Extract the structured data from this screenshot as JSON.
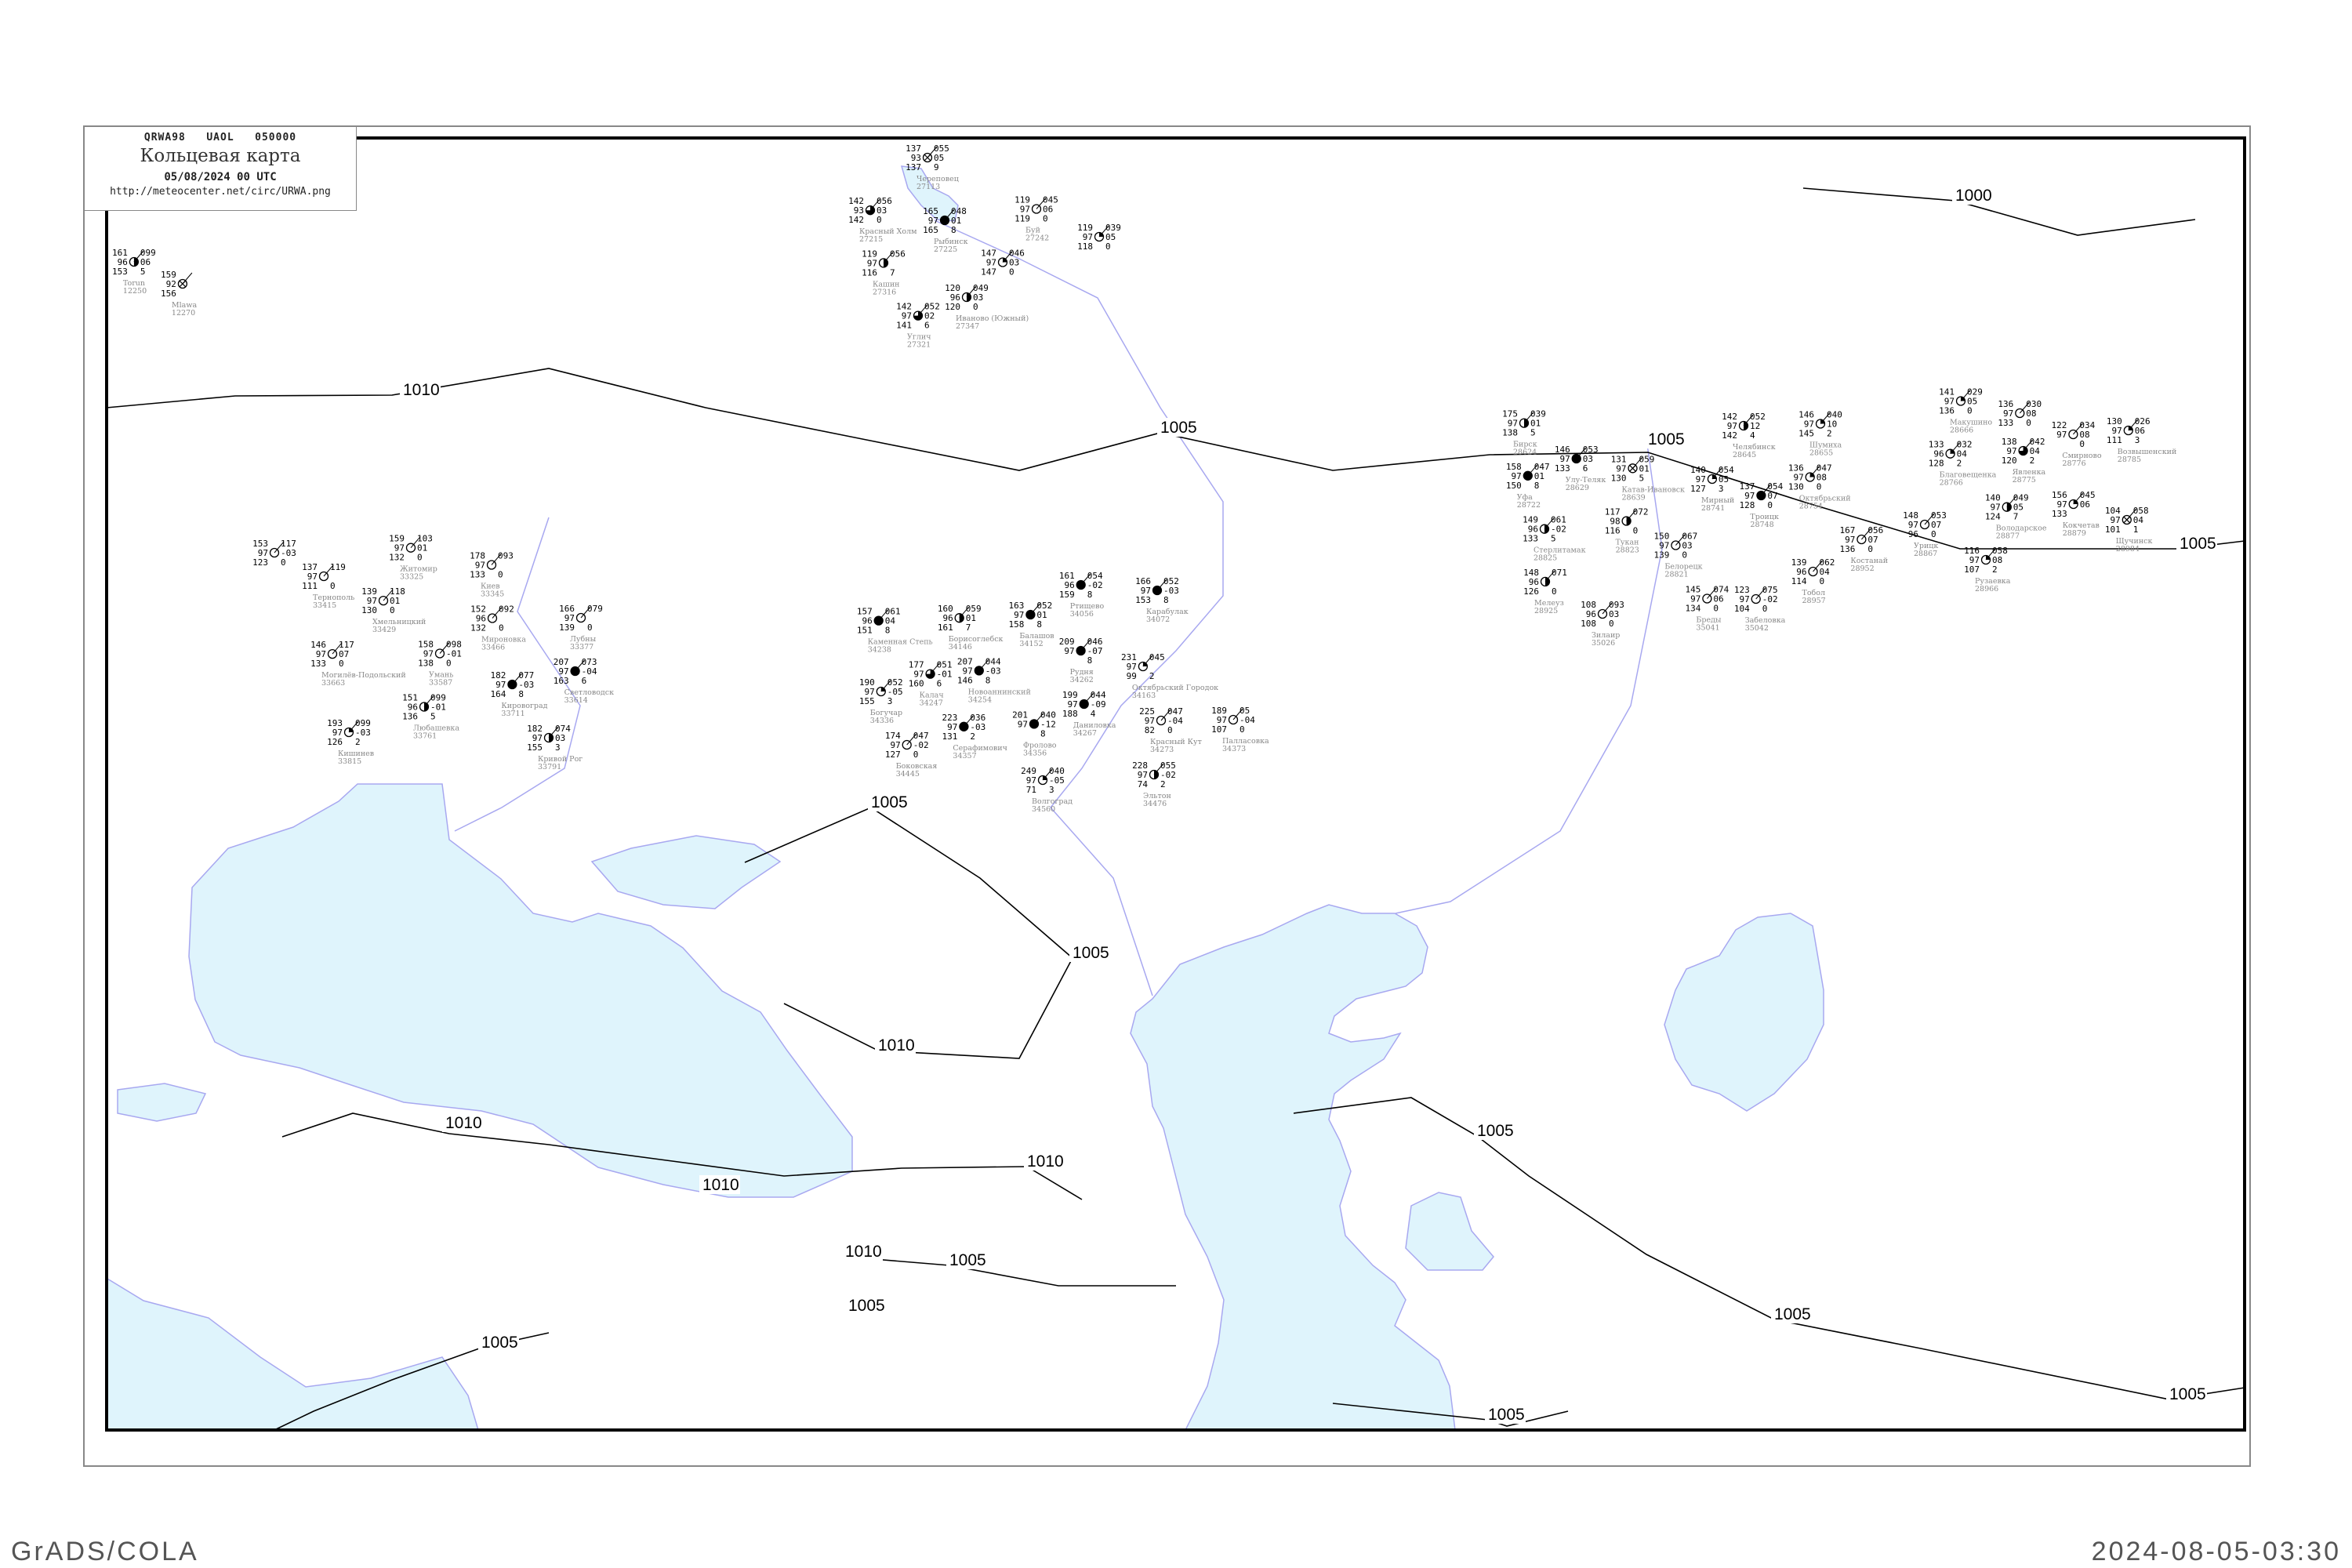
{
  "header": {
    "code_line": "QRWA98   UAOL   050000",
    "title": "Кольцевая карта",
    "date": "05/08/2024 00 UTC",
    "url": "http://meteocenter.net/circ/URWA.png"
  },
  "footer": {
    "left": "GrADS/COLA",
    "right": "2024-08-05-03:30"
  },
  "colors": {
    "water": "#dff4fc",
    "coast": "#a8a8f0",
    "river": "#1aa0f0",
    "isobar": "#000000",
    "station_name": "#888888"
  },
  "isobar_labels": [
    "1000",
    "1005",
    "1005",
    "1005",
    "1005",
    "1005",
    "1005",
    "1005",
    "1005",
    "1010",
    "1010",
    "1010",
    "1010",
    "1010",
    "1005",
    "1005",
    "1005",
    "1005",
    "1010"
  ],
  "stations": [
    {
      "name": "Torun",
      "id": "12250",
      "t": "161",
      "p": "099",
      "vis": "96",
      "tend": "06",
      "td": "153",
      "ww": "5",
      "cover": "half"
    },
    {
      "name": "Mlawa",
      "id": "12270",
      "t": "159",
      "p": "",
      "vis": "92",
      "tend": "",
      "td": "156",
      "ww": "",
      "cover": "cross"
    },
    {
      "name": "Череповец",
      "id": "27113",
      "t": "137",
      "p": "055",
      "vis": "93",
      "tend": "05",
      "td": "137",
      "ww": "9",
      "cover": "cross"
    },
    {
      "name": "Красный Холм",
      "id": "27215",
      "t": "142",
      "p": "056",
      "vis": "93",
      "tend": "03",
      "td": "142",
      "ww": "0",
      "cover": "three-quarter"
    },
    {
      "name": "Рыбинск",
      "id": "27225",
      "t": "165",
      "p": "048",
      "vis": "97",
      "tend": "01",
      "td": "165",
      "ww": "8",
      "cover": "full"
    },
    {
      "name": "Кашин",
      "id": "27316",
      "t": "119",
      "p": "056",
      "vis": "97",
      "tend": "",
      "td": "116",
      "ww": "7",
      "cover": "half"
    },
    {
      "name": "Углич",
      "id": "27321",
      "t": "142",
      "p": "052",
      "vis": "97",
      "tend": "02",
      "td": "141",
      "ww": "6",
      "cover": "three-quarter"
    },
    {
      "name": "",
      "id": "",
      "t": "147",
      "p": "046",
      "vis": "97",
      "tend": "03",
      "td": "147",
      "ww": "0",
      "cover": "quarter"
    },
    {
      "name": "Иваново (Южный)",
      "id": "27347",
      "t": "120",
      "p": "049",
      "vis": "96",
      "tend": "03",
      "td": "120",
      "ww": "0",
      "cover": "half"
    },
    {
      "name": "Буй",
      "id": "27242",
      "t": "119",
      "p": "045",
      "vis": "97",
      "tend": "06",
      "td": "119",
      "ww": "0",
      "cover": "empty"
    },
    {
      "name": "",
      "id": "",
      "t": "119",
      "p": "039",
      "vis": "97",
      "tend": "05",
      "td": "118",
      "ww": "0",
      "cover": "quarter"
    },
    {
      "name": "Ртищево",
      "id": "34056",
      "t": "161",
      "p": "054",
      "vis": "96",
      "tend": "-02",
      "td": "159",
      "ww": "8",
      "cover": "full"
    },
    {
      "name": "Балашов",
      "id": "34152",
      "t": "163",
      "p": "052",
      "vis": "97",
      "tend": "01",
      "td": "158",
      "ww": "8",
      "cover": "full"
    },
    {
      "name": "Борисоглебск",
      "id": "34146",
      "t": "160",
      "p": "059",
      "vis": "96",
      "tend": "01",
      "td": "161",
      "ww": "7",
      "cover": "half"
    },
    {
      "name": "Каменная Степь",
      "id": "34238",
      "t": "157",
      "p": "061",
      "vis": "96",
      "tend": "04",
      "td": "151",
      "ww": "8",
      "cover": "full"
    },
    {
      "name": "Калач",
      "id": "34247",
      "t": "177",
      "p": "051",
      "vis": "97",
      "tend": "-01",
      "td": "160",
      "ww": "6",
      "cover": "three-quarter"
    },
    {
      "name": "Новоаннинский",
      "id": "34254",
      "t": "207",
      "p": "044",
      "vis": "97",
      "tend": "-03",
      "td": "146",
      "ww": "8",
      "cover": "full"
    },
    {
      "name": "Рудня",
      "id": "34262",
      "t": "209",
      "p": "046",
      "vis": "97",
      "tend": "-07",
      "td": "",
      "ww": "8",
      "cover": "full"
    },
    {
      "name": "Октябрьский Городок",
      "id": "34163",
      "t": "231",
      "p": "045",
      "vis": "97",
      "tend": "",
      "td": "99",
      "ww": "2",
      "cover": "quarter"
    },
    {
      "name": "Карабулак",
      "id": "34072",
      "t": "166",
      "p": "052",
      "vis": "97",
      "tend": "-03",
      "td": "153",
      "ww": "8",
      "cover": "full"
    },
    {
      "name": "Даниловка",
      "id": "34267",
      "t": "199",
      "p": "044",
      "vis": "97",
      "tend": "-09",
      "td": "188",
      "ww": "4",
      "cover": "full"
    },
    {
      "name": "Богучар",
      "id": "34336",
      "t": "190",
      "p": "052",
      "vis": "97",
      "tend": "-05",
      "td": "155",
      "ww": "3",
      "cover": "quarter"
    },
    {
      "name": "Красный Кут",
      "id": "34273",
      "t": "225",
      "p": "047",
      "vis": "97",
      "tend": "-04",
      "td": "82",
      "ww": "0",
      "cover": "empty"
    },
    {
      "name": "Палласовка",
      "id": "34373",
      "t": "189",
      "p": "05",
      "vis": "97",
      "tend": "-04",
      "td": "107",
      "ww": "0",
      "cover": "empty"
    },
    {
      "name": "Фролово",
      "id": "34356",
      "t": "201",
      "p": "040",
      "vis": "97",
      "tend": "-12",
      "td": "",
      "ww": "8",
      "cover": "full"
    },
    {
      "name": "Серафимович",
      "id": "34357",
      "t": "223",
      "p": "036",
      "vis": "97",
      "tend": "-03",
      "td": "131",
      "ww": "2",
      "cover": "full"
    },
    {
      "name": "Боковская",
      "id": "34445",
      "t": "174",
      "p": "047",
      "vis": "97",
      "tend": "-02",
      "td": "127",
      "ww": "0",
      "cover": "empty"
    },
    {
      "name": "Волгоград",
      "id": "34560",
      "t": "249",
      "p": "040",
      "vis": "97",
      "tend": "-05",
      "td": "71",
      "ww": "3",
      "cover": "quarter"
    },
    {
      "name": "Эльтон",
      "id": "34476",
      "t": "228",
      "p": "055",
      "vis": "97",
      "tend": "-02",
      "td": "74",
      "ww": "2",
      "cover": "half"
    },
    {
      "name": "Бирск",
      "id": "28624",
      "t": "175",
      "p": "039",
      "vis": "97",
      "tend": "01",
      "td": "138",
      "ww": "5",
      "cover": "half"
    },
    {
      "name": "Уфа",
      "id": "28722",
      "t": "158",
      "p": "047",
      "vis": "97",
      "tend": "01",
      "td": "150",
      "ww": "8",
      "cover": "full"
    },
    {
      "name": "Улу-Теляк",
      "id": "28629",
      "t": "146",
      "p": "053",
      "vis": "97",
      "tend": "03",
      "td": "133",
      "ww": "6",
      "cover": "full"
    },
    {
      "name": "Катав-Ивановск",
      "id": "28639",
      "t": "131",
      "p": "059",
      "vis": "97",
      "tend": "01",
      "td": "130",
      "ww": "5",
      "cover": "cross"
    },
    {
      "name": "Мирный",
      "id": "28741",
      "t": "140",
      "p": "054",
      "vis": "97",
      "tend": "05",
      "td": "127",
      "ww": "3",
      "cover": "quarter"
    },
    {
      "name": "Челябинск",
      "id": "28645",
      "t": "142",
      "p": "052",
      "vis": "97",
      "tend": "12",
      "td": "142",
      "ww": "4",
      "cover": "half"
    },
    {
      "name": "Троицк",
      "id": "28748",
      "t": "137",
      "p": "054",
      "vis": "97",
      "tend": "07",
      "td": "128",
      "ww": "0",
      "cover": "full"
    },
    {
      "name": "Шумиха",
      "id": "28655",
      "t": "146",
      "p": "040",
      "vis": "97",
      "tend": "10",
      "td": "145",
      "ww": "2",
      "cover": "quarter"
    },
    {
      "name": "Октябрьский",
      "id": "28754",
      "t": "136",
      "p": "047",
      "vis": "97",
      "tend": "08",
      "td": "130",
      "ww": "0",
      "cover": "quarter"
    },
    {
      "name": "Костанай",
      "id": "28952",
      "t": "167",
      "p": "056",
      "vis": "97",
      "tend": "07",
      "td": "136",
      "ww": "0",
      "cover": "empty"
    },
    {
      "name": "Тобол",
      "id": "28957",
      "t": "139",
      "p": "062",
      "vis": "96",
      "tend": "04",
      "td": "114",
      "ww": "0",
      "cover": "empty"
    },
    {
      "name": "Белорецк",
      "id": "28821",
      "t": "150",
      "p": "067",
      "vis": "97",
      "tend": "03",
      "td": "139",
      "ww": "0",
      "cover": "empty"
    },
    {
      "name": "Тукан",
      "id": "28823",
      "t": "117",
      "p": "072",
      "vis": "98",
      "tend": "",
      "td": "116",
      "ww": "0",
      "cover": "half"
    },
    {
      "name": "Стерлитамак",
      "id": "28825",
      "t": "149",
      "p": "061",
      "vis": "96",
      "tend": "-02",
      "td": "133",
      "ww": "5",
      "cover": "half"
    },
    {
      "name": "Мелеуз",
      "id": "28925",
      "t": "148",
      "p": "071",
      "vis": "96",
      "tend": "",
      "td": "126",
      "ww": "0",
      "cover": "half"
    },
    {
      "name": "Бреды",
      "id": "35041",
      "t": "145",
      "p": "074",
      "vis": "97",
      "tend": "06",
      "td": "134",
      "ww": "0",
      "cover": "empty"
    },
    {
      "name": "Забеловка",
      "id": "35042",
      "t": "123",
      "p": "075",
      "vis": "97",
      "tend": "-02",
      "td": "104",
      "ww": "0",
      "cover": "empty"
    },
    {
      "name": "Зилаир",
      "id": "35026",
      "t": "108",
      "p": "093",
      "vis": "96",
      "tend": "03",
      "td": "108",
      "ww": "0",
      "cover": "empty"
    },
    {
      "name": "Тернополь",
      "id": "33415",
      "t": "137",
      "p": "119",
      "vis": "97",
      "tend": "",
      "td": "111",
      "ww": "0",
      "cover": "empty"
    },
    {
      "name": "",
      "id": "",
      "t": "153",
      "p": "117",
      "vis": "97",
      "tend": "-03",
      "td": "123",
      "ww": "0",
      "cover": "empty"
    },
    {
      "name": "Житомир",
      "id": "33325",
      "t": "159",
      "p": "103",
      "vis": "97",
      "tend": "01",
      "td": "132",
      "ww": "0",
      "cover": "empty"
    },
    {
      "name": "Киев",
      "id": "33345",
      "t": "178",
      "p": "093",
      "vis": "97",
      "tend": "",
      "td": "133",
      "ww": "0",
      "cover": "empty"
    },
    {
      "name": "Хмельницкий",
      "id": "33429",
      "t": "139",
      "p": "118",
      "vis": "97",
      "tend": "01",
      "td": "130",
      "ww": "0",
      "cover": "empty"
    },
    {
      "name": "Мироновка",
      "id": "33466",
      "t": "152",
      "p": "092",
      "vis": "96",
      "tend": "",
      "td": "132",
      "ww": "0",
      "cover": "empty"
    },
    {
      "name": "Лубны",
      "id": "33377",
      "t": "166",
      "p": "079",
      "vis": "97",
      "tend": "",
      "td": "139",
      "ww": "0",
      "cover": "empty"
    },
    {
      "name": "Могилёв-Подольский",
      "id": "33663",
      "t": "146",
      "p": "117",
      "vis": "97",
      "tend": "07",
      "td": "133",
      "ww": "0",
      "cover": "empty"
    },
    {
      "name": "Умань",
      "id": "33587",
      "t": "158",
      "p": "098",
      "vis": "97",
      "tend": "-01",
      "td": "138",
      "ww": "0",
      "cover": "empty"
    },
    {
      "name": "Любашевка",
      "id": "33761",
      "t": "151",
      "p": "099",
      "vis": "96",
      "tend": "-01",
      "td": "136",
      "ww": "5",
      "cover": "half"
    },
    {
      "name": "Кишинев",
      "id": "33815",
      "t": "193",
      "p": "099",
      "vis": "97",
      "tend": "-03",
      "td": "126",
      "ww": "2",
      "cover": "quarter"
    },
    {
      "name": "Светловодск",
      "id": "33614",
      "t": "207",
      "p": "073",
      "vis": "97",
      "tend": "-04",
      "td": "163",
      "ww": "6",
      "cover": "full"
    },
    {
      "name": "Кировоград",
      "id": "33711",
      "t": "182",
      "p": "077",
      "vis": "97",
      "tend": "-03",
      "td": "164",
      "ww": "8",
      "cover": "full"
    },
    {
      "name": "Кривой Рог",
      "id": "33791",
      "t": "182",
      "p": "074",
      "vis": "97",
      "tend": "03",
      "td": "155",
      "ww": "3",
      "cover": "half"
    },
    {
      "name": "Макушино",
      "id": "28666",
      "t": "141",
      "p": "029",
      "vis": "97",
      "tend": "05",
      "td": "136",
      "ww": "0",
      "cover": "quarter"
    },
    {
      "name": "",
      "id": "",
      "t": "136",
      "p": "030",
      "vis": "97",
      "tend": "08",
      "td": "133",
      "ww": "0",
      "cover": "empty"
    },
    {
      "name": "Благовещенка",
      "id": "28766",
      "t": "133",
      "p": "032",
      "vis": "96",
      "tend": "04",
      "td": "128",
      "ww": "2",
      "cover": "quarter"
    },
    {
      "name": "Явленка",
      "id": "28775",
      "t": "138",
      "p": "042",
      "vis": "97",
      "tend": "04",
      "td": "120",
      "ww": "2",
      "cover": "three-quarter"
    },
    {
      "name": "Смирново",
      "id": "28776",
      "t": "122",
      "p": "034",
      "vis": "97",
      "tend": "08",
      "td": "",
      "ww": "0",
      "cover": "empty"
    },
    {
      "name": "Возвышенский",
      "id": "28785",
      "t": "130",
      "p": "026",
      "vis": "97",
      "tend": "06",
      "td": "111",
      "ww": "3",
      "cover": "quarter"
    },
    {
      "name": "Володарское",
      "id": "28877",
      "t": "140",
      "p": "049",
      "vis": "97",
      "tend": "05",
      "td": "124",
      "ww": "7",
      "cover": "half"
    },
    {
      "name": "Кокчетав",
      "id": "28879",
      "t": "156",
      "p": "045",
      "vis": "97",
      "tend": "06",
      "td": "133",
      "ww": "",
      "cover": "quarter"
    },
    {
      "name": "Щучинск",
      "id": "28984",
      "t": "104",
      "p": "058",
      "vis": "97",
      "tend": "04",
      "td": "101",
      "ww": "1",
      "cover": "cross"
    },
    {
      "name": "Урицк",
      "id": "28867",
      "t": "148",
      "p": "053",
      "vis": "97",
      "tend": "07",
      "td": "96",
      "ww": "0",
      "cover": "empty"
    },
    {
      "name": "Рузаевка",
      "id": "28966",
      "t": "116",
      "p": "058",
      "vis": "97",
      "tend": "08",
      "td": "107",
      "ww": "2",
      "cover": "quarter"
    }
  ]
}
